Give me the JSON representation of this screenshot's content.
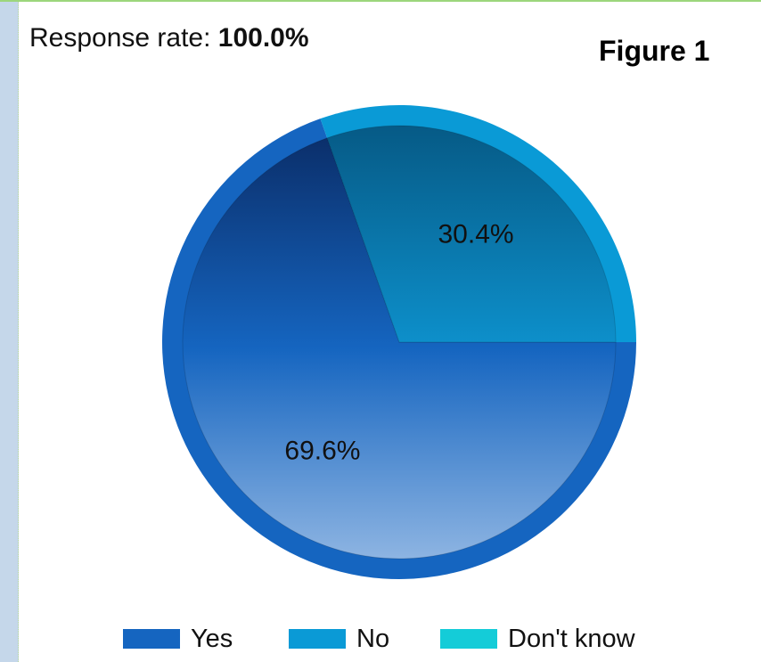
{
  "header": {
    "response_rate_label": "Response rate:",
    "response_rate_value": "100.0%",
    "figure_label": "Figure 1"
  },
  "chart_data": {
    "type": "pie",
    "slices": [
      {
        "name": "Yes",
        "value": 69.6,
        "label": "69.6%",
        "color": "#1565c0"
      },
      {
        "name": "No",
        "value": 30.4,
        "label": "30.4%",
        "color": "#0a9ad6"
      },
      {
        "name": "Don't know",
        "value": 0,
        "label": "",
        "color": "#14ccd8"
      }
    ],
    "legend": [
      "Yes",
      "No",
      "Don't know"
    ],
    "legend_position": "bottom"
  }
}
